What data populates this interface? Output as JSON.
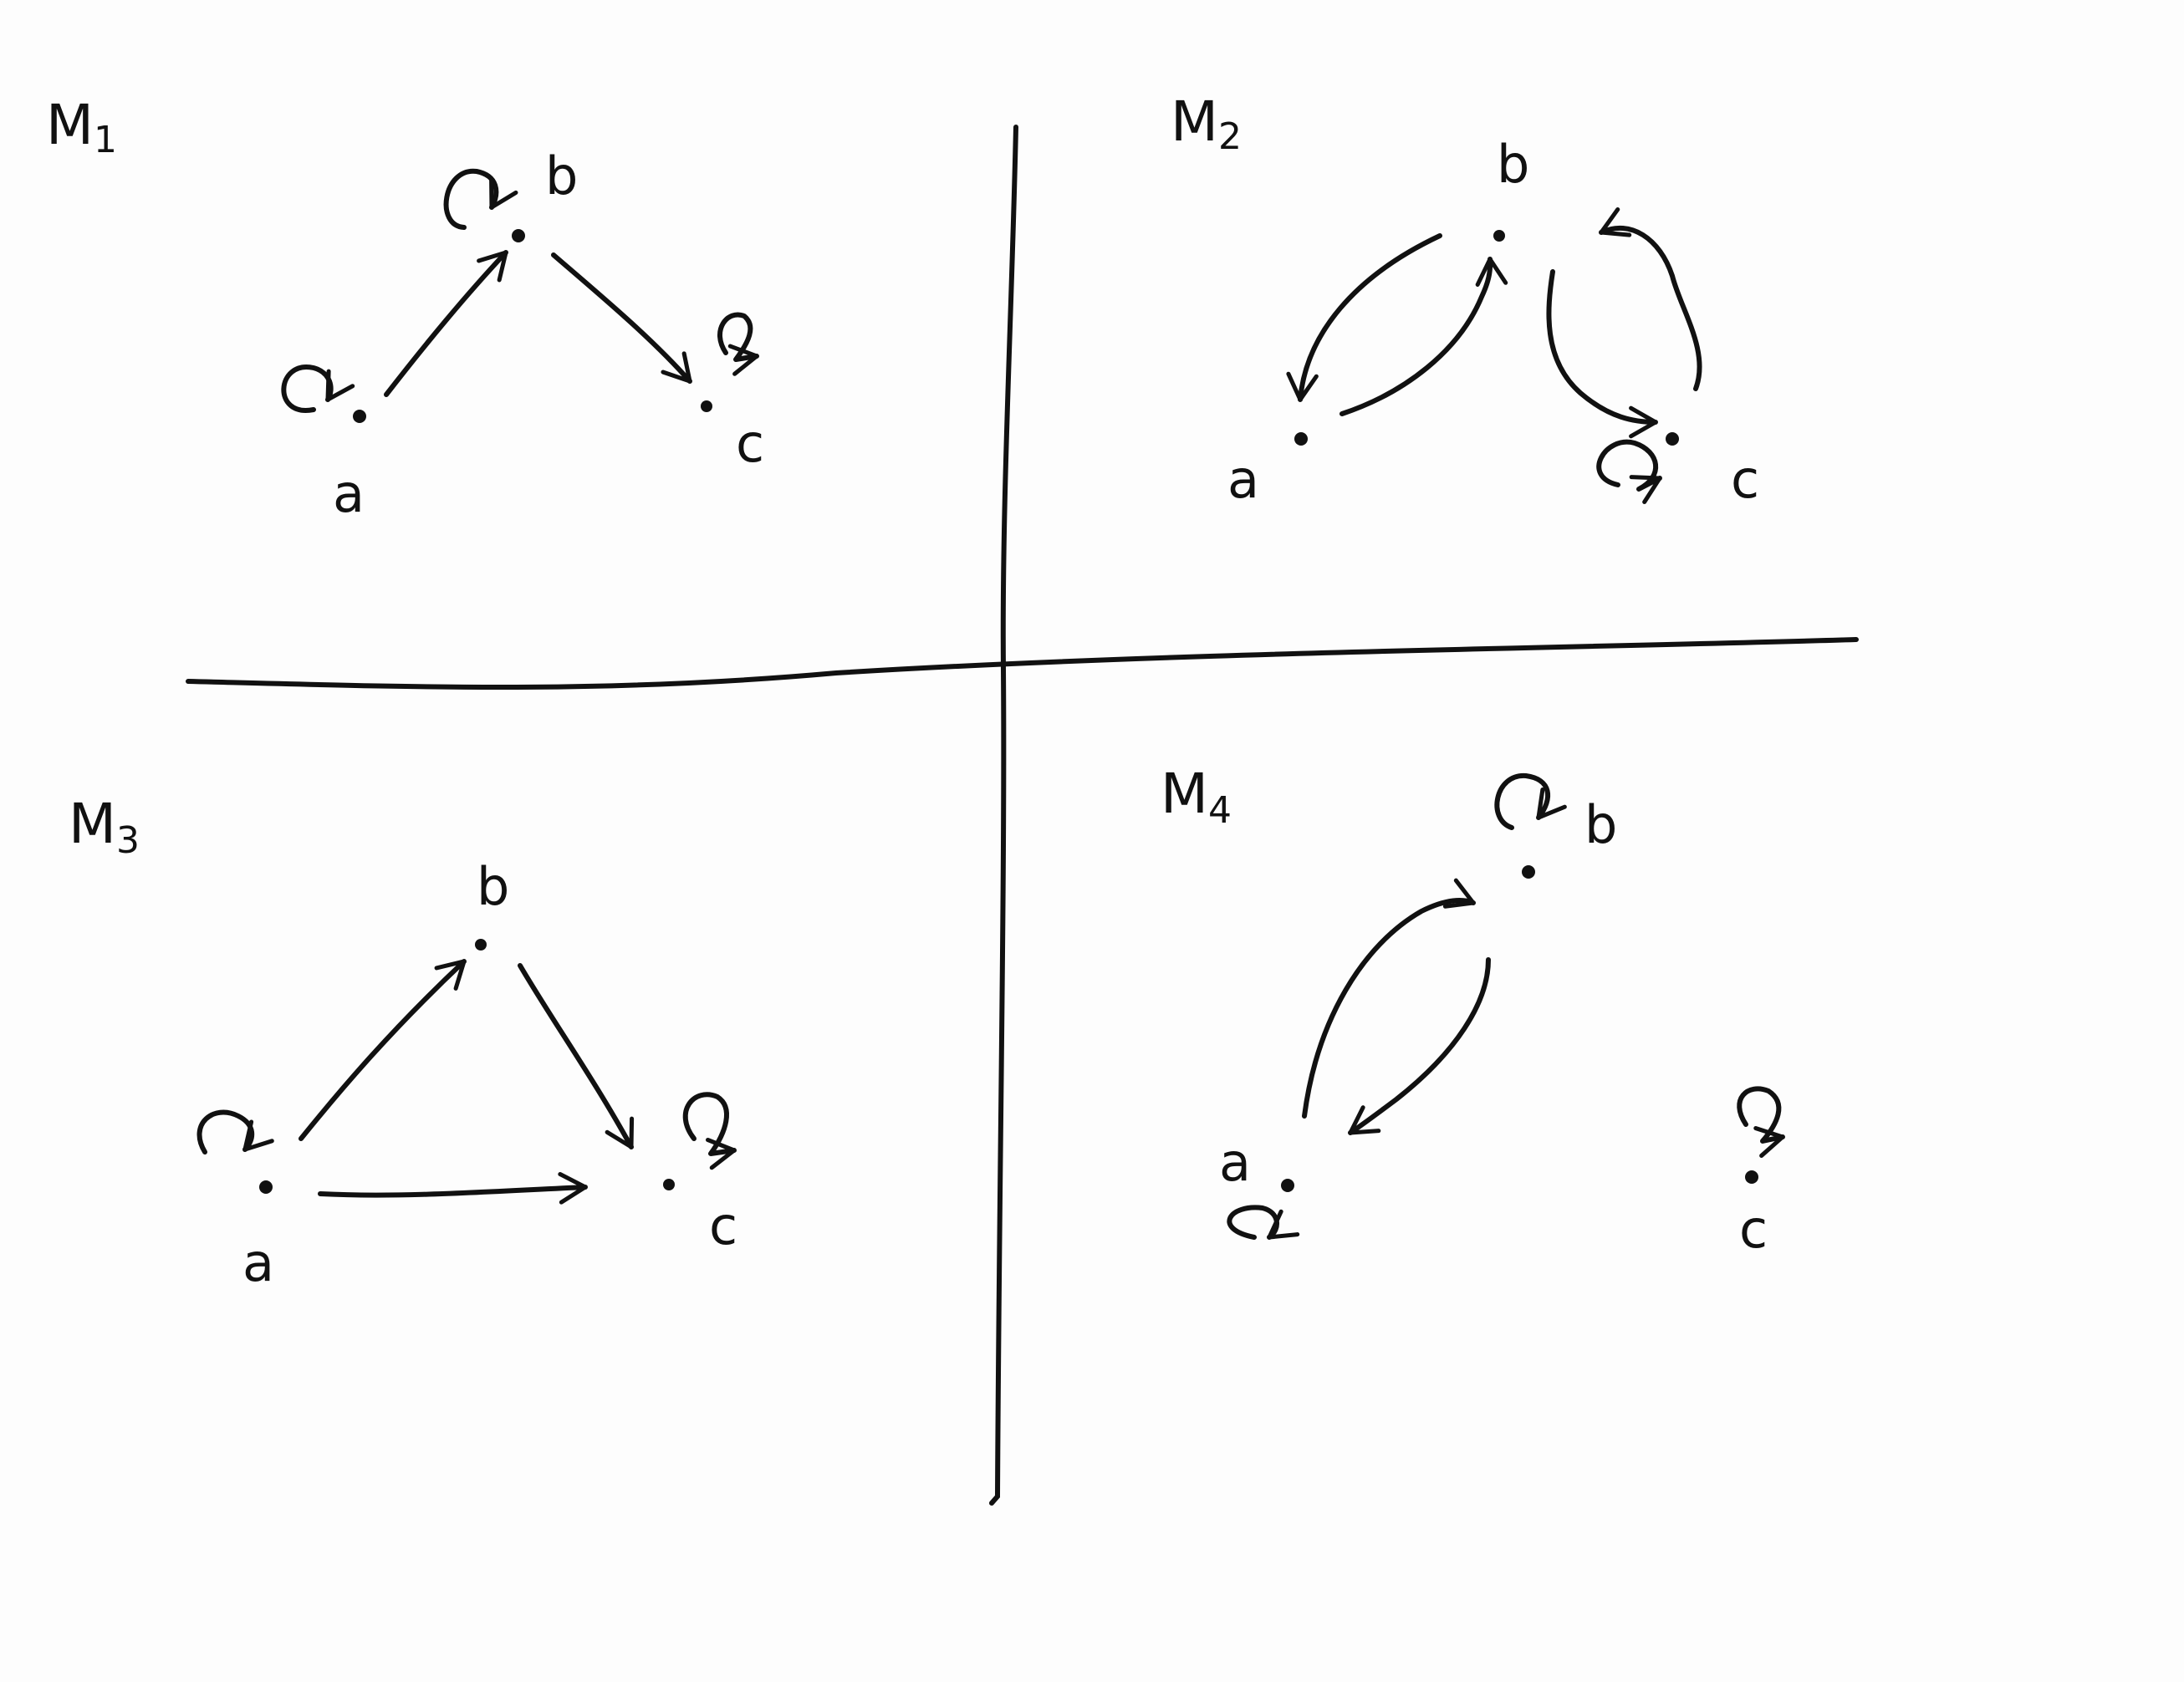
{
  "models": [
    {
      "id": "M1",
      "title": "M",
      "subscript": "1",
      "nodes": [
        "a",
        "b",
        "c"
      ],
      "edges": [
        [
          "a",
          "a"
        ],
        [
          "b",
          "b"
        ],
        [
          "c",
          "c"
        ],
        [
          "a",
          "b"
        ],
        [
          "b",
          "c"
        ]
      ]
    },
    {
      "id": "M2",
      "title": "M",
      "subscript": "2",
      "nodes": [
        "a",
        "b",
        "c"
      ],
      "edges": [
        [
          "a",
          "b"
        ],
        [
          "b",
          "a"
        ],
        [
          "b",
          "c"
        ],
        [
          "c",
          "b"
        ],
        [
          "c",
          "c"
        ]
      ]
    },
    {
      "id": "M3",
      "title": "M",
      "subscript": "3",
      "nodes": [
        "a",
        "b",
        "c"
      ],
      "edges": [
        [
          "a",
          "a"
        ],
        [
          "c",
          "c"
        ],
        [
          "a",
          "b"
        ],
        [
          "b",
          "c"
        ],
        [
          "a",
          "c"
        ]
      ]
    },
    {
      "id": "M4",
      "title": "M",
      "subscript": "4",
      "nodes": [
        "a",
        "b",
        "c"
      ],
      "edges": [
        [
          "a",
          "a"
        ],
        [
          "b",
          "b"
        ],
        [
          "c",
          "c"
        ],
        [
          "a",
          "b"
        ],
        [
          "b",
          "a"
        ]
      ]
    }
  ]
}
